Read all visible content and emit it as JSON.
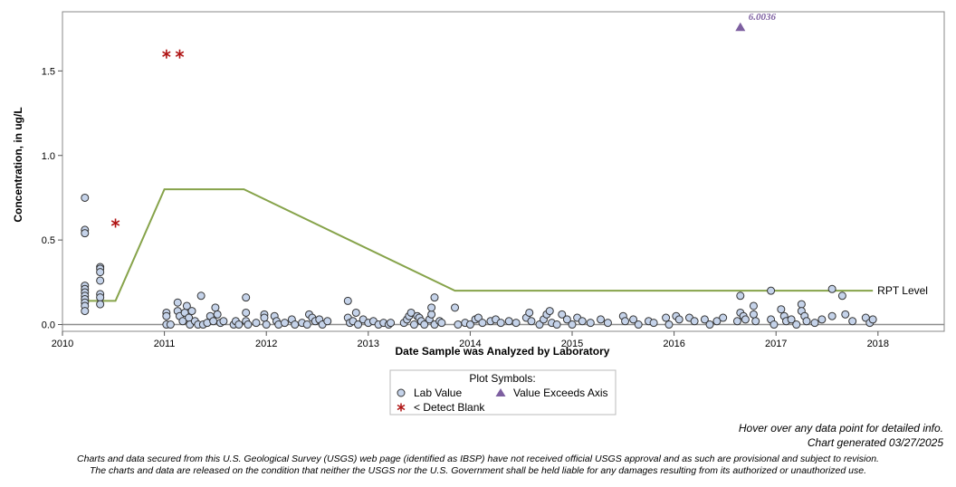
{
  "chart_data": {
    "type": "scatter",
    "xlabel": "Date Sample was Analyzed by Laboratory",
    "ylabel": "Concentration, in ug/L",
    "xlim": [
      2010.0,
      2018.65
    ],
    "ylim": [
      -0.04,
      1.85
    ],
    "x_ticks": [
      2010,
      2011,
      2012,
      2013,
      2014,
      2015,
      2016,
      2017,
      2018
    ],
    "y_ticks": [
      0.0,
      0.5,
      1.0,
      1.5
    ],
    "y_tick_labels": [
      "0.0",
      "0.5",
      "1.0",
      "1.5"
    ],
    "grid": false,
    "baseline_y": 0.0,
    "lab_values": {
      "name": "Lab Value",
      "color": "#c5d3ea",
      "points": [
        [
          2010.22,
          0.75
        ],
        [
          2010.22,
          0.56
        ],
        [
          2010.22,
          0.54
        ],
        [
          2010.22,
          0.23
        ],
        [
          2010.22,
          0.21
        ],
        [
          2010.22,
          0.19
        ],
        [
          2010.22,
          0.17
        ],
        [
          2010.22,
          0.15
        ],
        [
          2010.22,
          0.13
        ],
        [
          2010.22,
          0.11
        ],
        [
          2010.22,
          0.08
        ],
        [
          2010.37,
          0.34
        ],
        [
          2010.37,
          0.33
        ],
        [
          2010.37,
          0.31
        ],
        [
          2010.37,
          0.26
        ],
        [
          2010.37,
          0.18
        ],
        [
          2010.37,
          0.16
        ],
        [
          2010.37,
          0.12
        ],
        [
          2011.02,
          0.07
        ],
        [
          2011.02,
          0.05
        ],
        [
          2011.02,
          0.0
        ],
        [
          2011.06,
          0.0
        ],
        [
          2011.13,
          0.13
        ],
        [
          2011.13,
          0.08
        ],
        [
          2011.15,
          0.05
        ],
        [
          2011.18,
          0.02
        ],
        [
          2011.2,
          0.07
        ],
        [
          2011.22,
          0.11
        ],
        [
          2011.24,
          0.04
        ],
        [
          2011.25,
          0.0
        ],
        [
          2011.27,
          0.08
        ],
        [
          2011.3,
          0.02
        ],
        [
          2011.33,
          0.0
        ],
        [
          2011.36,
          0.17
        ],
        [
          2011.38,
          0.0
        ],
        [
          2011.42,
          0.01
        ],
        [
          2011.45,
          0.05
        ],
        [
          2011.48,
          0.02
        ],
        [
          2011.5,
          0.1
        ],
        [
          2011.52,
          0.06
        ],
        [
          2011.55,
          0.01
        ],
        [
          2011.58,
          0.02
        ],
        [
          2011.68,
          0.0
        ],
        [
          2011.7,
          0.02
        ],
        [
          2011.73,
          0.0
        ],
        [
          2011.8,
          0.16
        ],
        [
          2011.8,
          0.07
        ],
        [
          2011.8,
          0.02
        ],
        [
          2011.82,
          0.0
        ],
        [
          2011.9,
          0.01
        ],
        [
          2011.98,
          0.06
        ],
        [
          2011.98,
          0.04
        ],
        [
          2012.0,
          0.0
        ],
        [
          2012.08,
          0.05
        ],
        [
          2012.1,
          0.02
        ],
        [
          2012.12,
          0.0
        ],
        [
          2012.18,
          0.01
        ],
        [
          2012.25,
          0.03
        ],
        [
          2012.28,
          0.0
        ],
        [
          2012.35,
          0.01
        ],
        [
          2012.4,
          0.0
        ],
        [
          2012.42,
          0.06
        ],
        [
          2012.45,
          0.04
        ],
        [
          2012.48,
          0.02
        ],
        [
          2012.52,
          0.03
        ],
        [
          2012.55,
          0.0
        ],
        [
          2012.6,
          0.02
        ],
        [
          2012.8,
          0.14
        ],
        [
          2012.8,
          0.04
        ],
        [
          2012.82,
          0.01
        ],
        [
          2012.85,
          0.02
        ],
        [
          2012.88,
          0.07
        ],
        [
          2012.9,
          0.0
        ],
        [
          2012.95,
          0.03
        ],
        [
          2013.0,
          0.01
        ],
        [
          2013.05,
          0.02
        ],
        [
          2013.1,
          0.0
        ],
        [
          2013.15,
          0.01
        ],
        [
          2013.2,
          0.0
        ],
        [
          2013.22,
          0.01
        ],
        [
          2013.35,
          0.01
        ],
        [
          2013.38,
          0.03
        ],
        [
          2013.4,
          0.05
        ],
        [
          2013.42,
          0.07
        ],
        [
          2013.45,
          0.0
        ],
        [
          2013.48,
          0.05
        ],
        [
          2013.5,
          0.04
        ],
        [
          2013.52,
          0.02
        ],
        [
          2013.55,
          0.0
        ],
        [
          2013.6,
          0.03
        ],
        [
          2013.62,
          0.06
        ],
        [
          2013.62,
          0.1
        ],
        [
          2013.65,
          0.16
        ],
        [
          2013.65,
          0.0
        ],
        [
          2013.7,
          0.02
        ],
        [
          2013.72,
          0.01
        ],
        [
          2013.85,
          0.1
        ],
        [
          2013.88,
          0.0
        ],
        [
          2013.95,
          0.01
        ],
        [
          2014.0,
          0.0
        ],
        [
          2014.05,
          0.03
        ],
        [
          2014.08,
          0.04
        ],
        [
          2014.12,
          0.01
        ],
        [
          2014.2,
          0.02
        ],
        [
          2014.25,
          0.03
        ],
        [
          2014.3,
          0.01
        ],
        [
          2014.38,
          0.02
        ],
        [
          2014.45,
          0.01
        ],
        [
          2014.55,
          0.04
        ],
        [
          2014.58,
          0.07
        ],
        [
          2014.6,
          0.02
        ],
        [
          2014.68,
          0.0
        ],
        [
          2014.72,
          0.03
        ],
        [
          2014.75,
          0.06
        ],
        [
          2014.78,
          0.08
        ],
        [
          2014.8,
          0.01
        ],
        [
          2014.85,
          0.0
        ],
        [
          2014.9,
          0.06
        ],
        [
          2014.95,
          0.03
        ],
        [
          2015.0,
          0.0
        ],
        [
          2015.05,
          0.04
        ],
        [
          2015.1,
          0.02
        ],
        [
          2015.18,
          0.01
        ],
        [
          2015.28,
          0.03
        ],
        [
          2015.35,
          0.01
        ],
        [
          2015.5,
          0.05
        ],
        [
          2015.52,
          0.02
        ],
        [
          2015.6,
          0.03
        ],
        [
          2015.65,
          0.0
        ],
        [
          2015.75,
          0.02
        ],
        [
          2015.8,
          0.01
        ],
        [
          2015.92,
          0.04
        ],
        [
          2015.95,
          0.0
        ],
        [
          2016.02,
          0.05
        ],
        [
          2016.05,
          0.03
        ],
        [
          2016.15,
          0.04
        ],
        [
          2016.2,
          0.02
        ],
        [
          2016.3,
          0.03
        ],
        [
          2016.35,
          0.0
        ],
        [
          2016.42,
          0.02
        ],
        [
          2016.48,
          0.04
        ],
        [
          2016.62,
          0.02
        ],
        [
          2016.65,
          0.17
        ],
        [
          2016.65,
          0.07
        ],
        [
          2016.68,
          0.05
        ],
        [
          2016.7,
          0.03
        ],
        [
          2016.78,
          0.11
        ],
        [
          2016.78,
          0.06
        ],
        [
          2016.8,
          0.02
        ],
        [
          2016.95,
          0.2
        ],
        [
          2016.95,
          0.03
        ],
        [
          2016.98,
          0.0
        ],
        [
          2017.05,
          0.09
        ],
        [
          2017.08,
          0.05
        ],
        [
          2017.1,
          0.02
        ],
        [
          2017.15,
          0.03
        ],
        [
          2017.2,
          0.0
        ],
        [
          2017.25,
          0.12
        ],
        [
          2017.25,
          0.08
        ],
        [
          2017.28,
          0.05
        ],
        [
          2017.3,
          0.02
        ],
        [
          2017.38,
          0.01
        ],
        [
          2017.45,
          0.03
        ],
        [
          2017.55,
          0.21
        ],
        [
          2017.55,
          0.05
        ],
        [
          2017.65,
          0.17
        ],
        [
          2017.68,
          0.06
        ],
        [
          2017.75,
          0.02
        ],
        [
          2017.88,
          0.04
        ],
        [
          2017.92,
          0.01
        ],
        [
          2017.95,
          0.03
        ]
      ]
    },
    "detect_blank": {
      "name": "< Detect Blank",
      "color": "#b01515",
      "points": [
        [
          2011.02,
          1.6
        ],
        [
          2011.15,
          1.6
        ],
        [
          2010.52,
          0.6
        ]
      ]
    },
    "exceeds_axis": {
      "name": "Value Exceeds Axis",
      "color": "#7d5fa0",
      "points": [
        [
          2016.65,
          1.76
        ]
      ],
      "label": "6.0036"
    },
    "rpt_level": {
      "name": "RPT Level",
      "color": "#86a34a",
      "points": [
        [
          2010.22,
          0.14
        ],
        [
          2010.52,
          0.14
        ],
        [
          2011.0,
          0.8
        ],
        [
          2011.78,
          0.8
        ],
        [
          2013.85,
          0.2
        ],
        [
          2017.95,
          0.2
        ]
      ]
    },
    "legend": {
      "title": "Plot Symbols:",
      "placement": "bottom-center",
      "entries": [
        "Lab Value",
        "Value Exceeds Axis",
        "< Detect Blank"
      ]
    }
  },
  "footer": {
    "hover_note": "Hover over any data point for detailed info.",
    "generated": "Chart generated 03/27/2025",
    "disclaimer_1": "Charts and data secured from this U.S. Geological Survey (USGS) web page (identified as IBSP) have not received official USGS approval and as such are provisional and subject to revision.",
    "disclaimer_2": "The charts and data are released on the condition that neither the USGS nor the U.S. Government shall be held liable for any damages resulting from its authorized or unauthorized use."
  }
}
